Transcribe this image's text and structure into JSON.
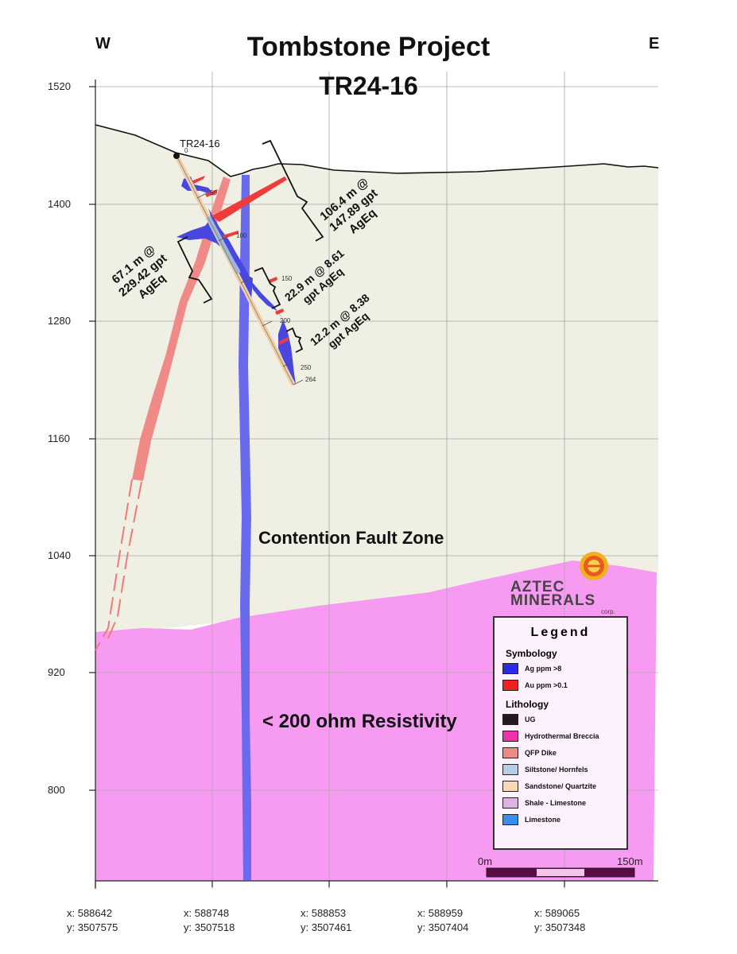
{
  "header": {
    "west": "W",
    "east": "E",
    "project": "Tombstone Project",
    "hole_id": "TR24-16"
  },
  "axes": {
    "elevation_ticks": [
      "1520",
      "1400",
      "1280",
      "1160",
      "1040",
      "920",
      "800"
    ],
    "easting_ticks": [
      {
        "x": "x: 588642",
        "y": "y: 3507575"
      },
      {
        "x": "x: 588748",
        "y": "y: 3507518"
      },
      {
        "x": "x: 588853",
        "y": "y: 3507461"
      },
      {
        "x": "x: 588959",
        "y": "y: 3507404"
      },
      {
        "x": "x: 589065",
        "y": "y: 3507348"
      }
    ]
  },
  "drillhole": {
    "collar_label": "TR24-16",
    "depth_ticks": [
      "0",
      "50",
      "100",
      "150",
      "200",
      "250",
      "264"
    ]
  },
  "intercepts": [
    {
      "line1": "106.4 m @",
      "line2": "147.89 gpt",
      "line3": "AgEq"
    },
    {
      "line1": "67.1 m @",
      "line2": "229.42 gpt",
      "line3": "AgEq"
    },
    {
      "line1": "22.9 m @ 8.61",
      "line2": "gpt AgEq"
    },
    {
      "line1": "12.2 m @ 8.38",
      "line2": "gpt AgEq"
    }
  ],
  "zones": {
    "fault_zone": "Contention Fault Zone",
    "resistivity": "< 200 ohm Resistivity"
  },
  "logo": {
    "line1": "AZTEC",
    "line2": "MINERALS",
    "line3": "corp."
  },
  "legend": {
    "title": "Legend",
    "symbology_heading": "Symbology",
    "symbology": [
      {
        "label": "Ag ppm >8",
        "color": "#2a2ae8"
      },
      {
        "label": "Au ppm >0.1",
        "color": "#ee2222"
      }
    ],
    "lithology_heading": "Lithology",
    "lithology": [
      {
        "label": "UG",
        "color": "#2a1620"
      },
      {
        "label": "Hydrothermal Breccia",
        "color": "#ee33aa"
      },
      {
        "label": "QFP Dike",
        "color": "#f08a86"
      },
      {
        "label": "Siltstone/ Hornfels",
        "color": "#b8cce4"
      },
      {
        "label": "Sandstone/ Quartzite",
        "color": "#f8d8b8"
      },
      {
        "label": "Shale - Limestone",
        "color": "#dcb4e0"
      },
      {
        "label": "Limestone",
        "color": "#3a8ee8"
      }
    ]
  },
  "scale_bar": {
    "start_label": "0m",
    "end_label": "150m"
  },
  "colors": {
    "background_zone": "#efefe3",
    "resistivity_zone": "#f79af2",
    "fault_dike": "#6a6aee",
    "qfp_dike": "#f08a86",
    "ag_anomaly": "#4848e0",
    "au_anomaly": "#ee3b3b"
  }
}
